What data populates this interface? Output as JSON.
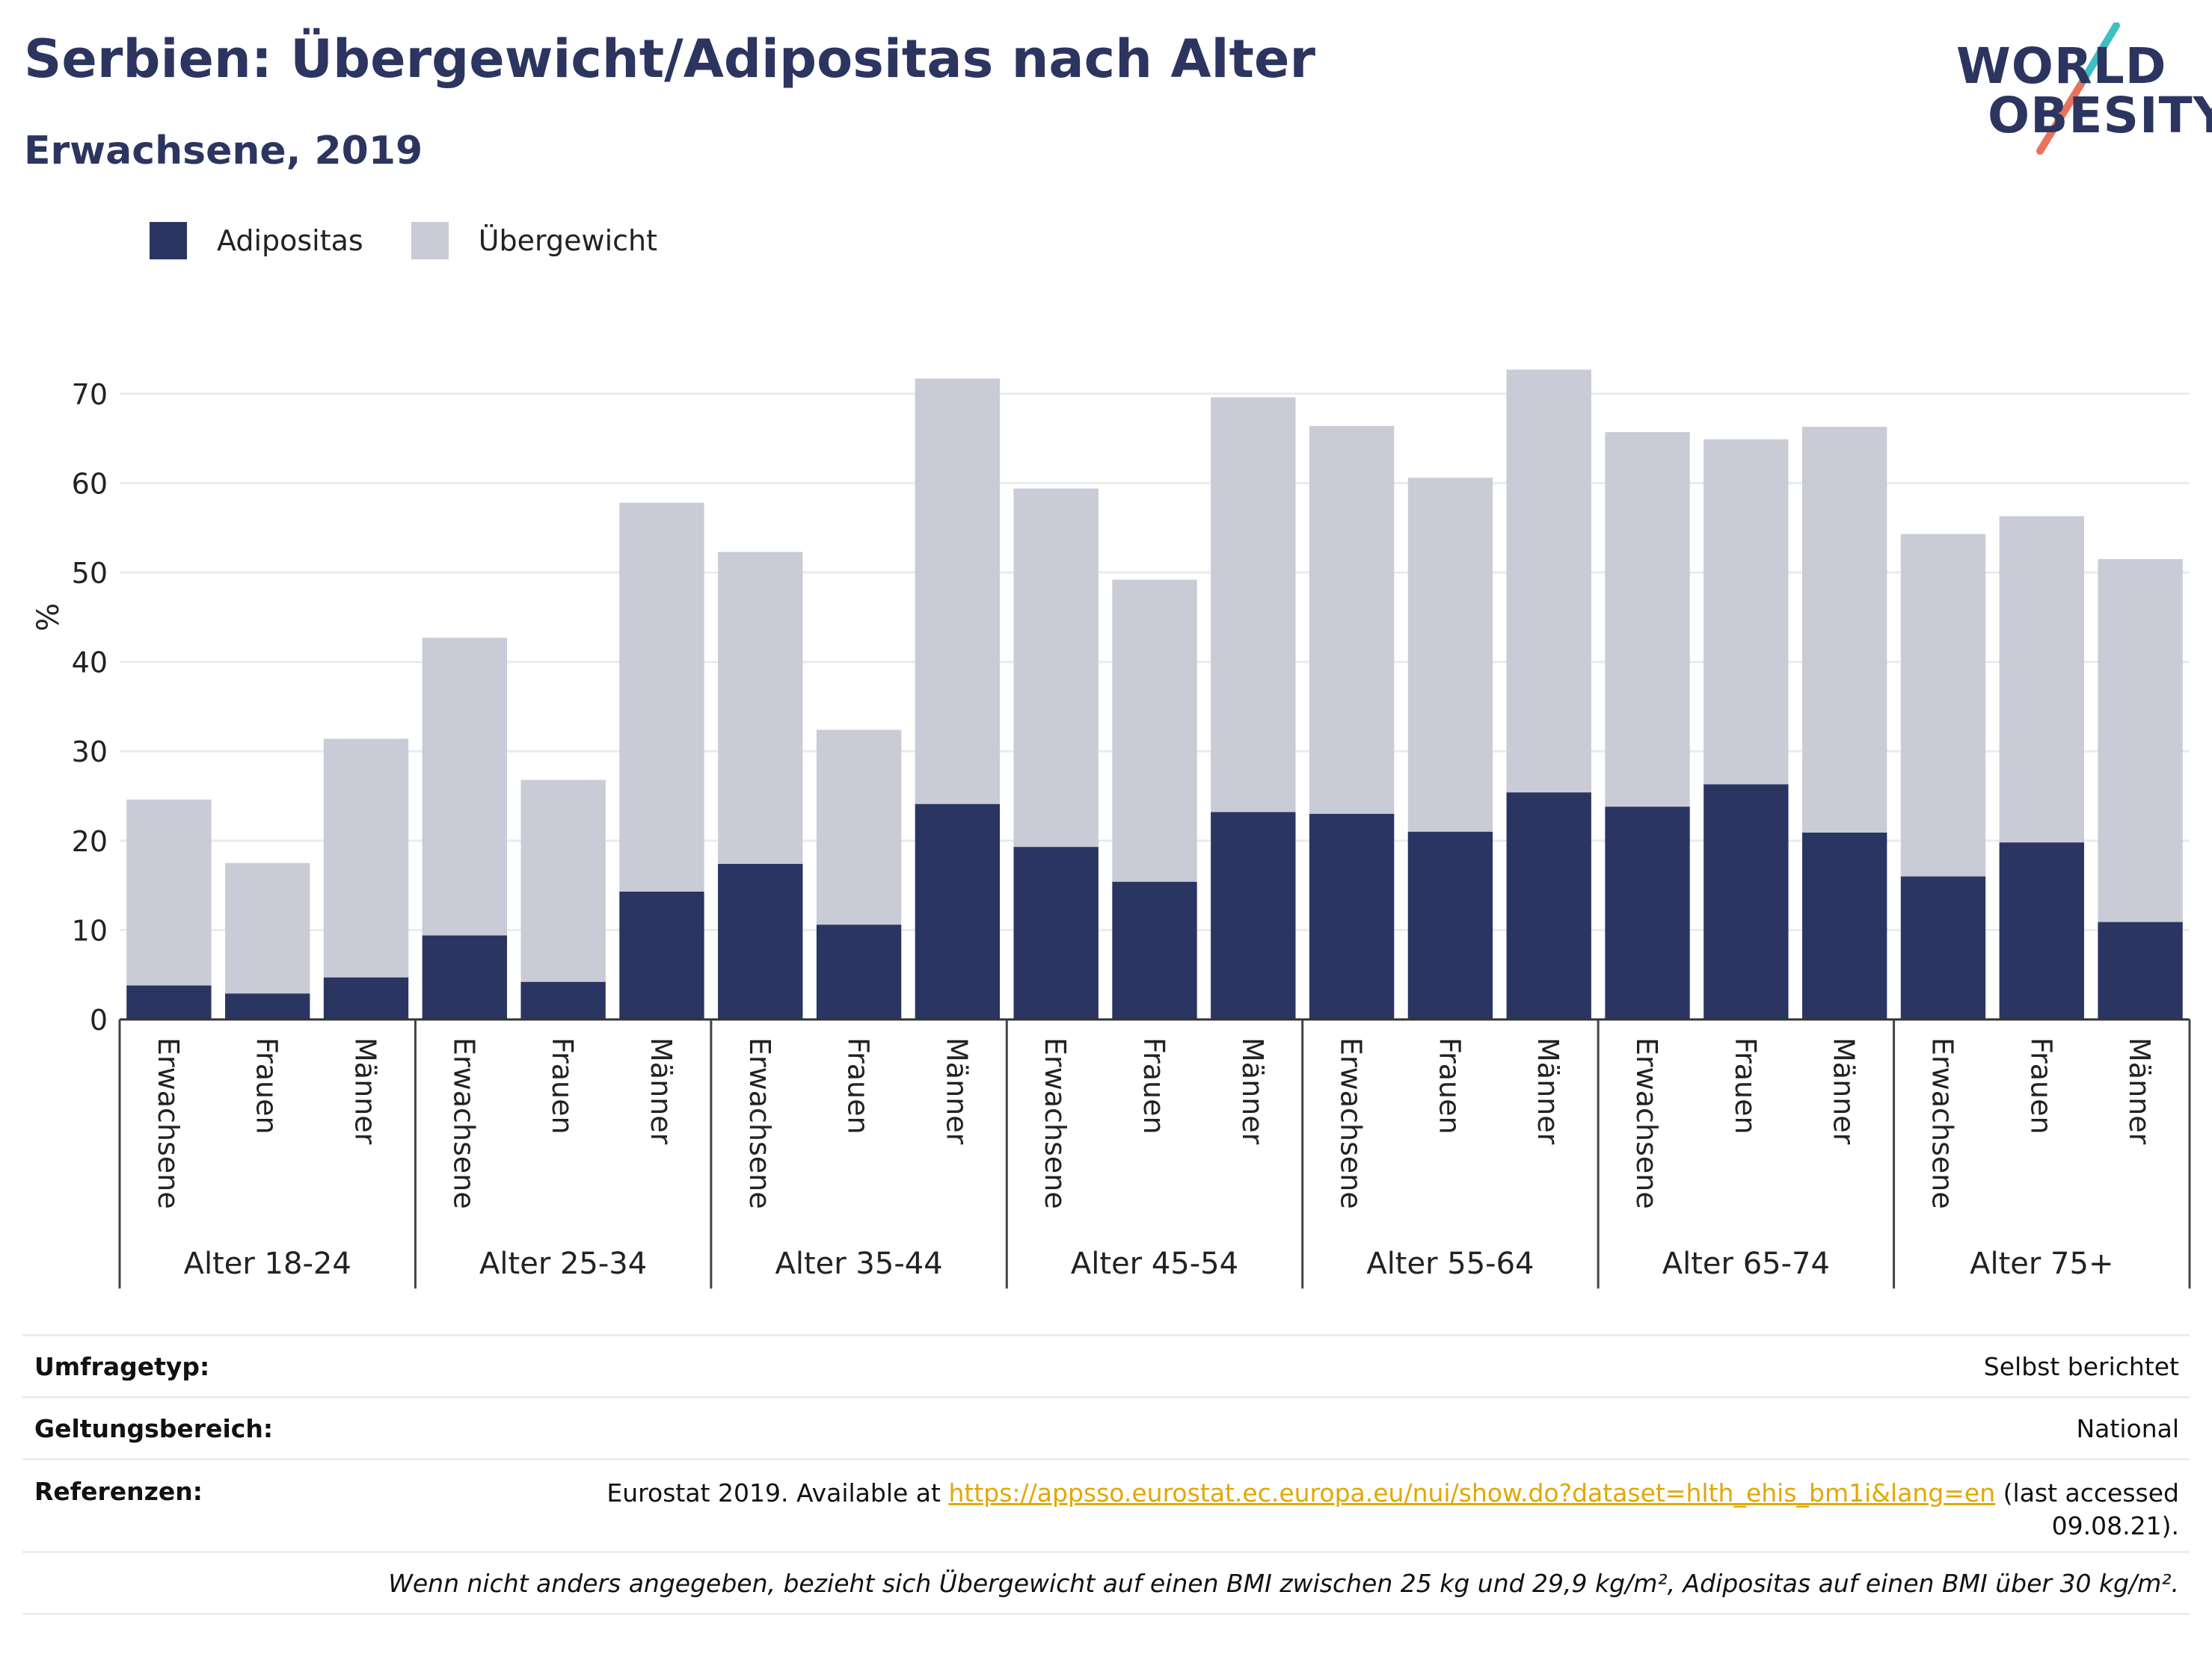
{
  "header": {
    "title": "Serbien: Übergewicht/Adipositas nach Alter",
    "subtitle": "Erwachsene, 2019"
  },
  "logo": {
    "line1": "WORLD",
    "line2": "OBESITY",
    "colors": {
      "navy": "#2c3560",
      "teal": "#3fbfc4",
      "coral": "#e8735a"
    }
  },
  "legend": [
    {
      "label": "Adipositas",
      "color": "#2b3561"
    },
    {
      "label": "Übergewicht",
      "color": "#c9cbd7"
    }
  ],
  "chart_data": {
    "type": "bar",
    "stacked": true,
    "ylabel": "%",
    "ylim": [
      0,
      73
    ],
    "yticks": [
      0,
      10,
      20,
      30,
      40,
      50,
      60,
      70
    ],
    "grid": true,
    "legend_position": "top-left",
    "groups": [
      "Alter 18-24",
      "Alter 25-34",
      "Alter 35-44",
      "Alter 45-54",
      "Alter 55-64",
      "Alter 65-74",
      "Alter 75+"
    ],
    "subcategories": [
      "Erwachsene",
      "Frauen",
      "Männer"
    ],
    "series": [
      {
        "name": "Adipositas",
        "color": "#2b3561",
        "values": [
          3.8,
          2.9,
          4.7,
          9.4,
          4.2,
          14.3,
          17.4,
          10.6,
          24.1,
          19.3,
          15.4,
          23.2,
          23.0,
          21.0,
          25.4,
          23.8,
          26.3,
          20.9,
          16.0,
          19.8,
          10.9
        ]
      },
      {
        "name": "Übergewicht",
        "color": "#c9cbd7",
        "values": [
          20.8,
          14.6,
          26.7,
          33.3,
          22.6,
          43.5,
          34.9,
          21.8,
          47.6,
          40.1,
          33.8,
          46.4,
          43.4,
          39.6,
          47.3,
          41.9,
          38.6,
          45.4,
          38.3,
          36.5,
          40.6
        ]
      }
    ]
  },
  "meta": {
    "survey_key": "Umfragetyp:",
    "survey_val": "Selbst berichtet",
    "scope_key": "Geltungsbereich:",
    "scope_val": "National",
    "ref_key": "Referenzen:",
    "ref_prefix": "Eurostat 2019. Available at",
    "ref_link": "https://appsso.eurostat.ec.europa.eu/nui/show.do?dataset=hlth_ehis_bm1i&lang=en",
    "ref_suffix": "(last accessed",
    "ref_date": "09.08.21).",
    "note": "Wenn nicht anders angegeben, bezieht sich Übergewicht auf einen BMI zwischen 25 kg und 29,9 kg/m², Adipositas auf einen BMI über 30 kg/m²."
  }
}
